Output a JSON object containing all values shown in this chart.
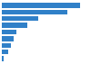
{
  "values": [
    5800,
    4900,
    2700,
    1900,
    1100,
    850,
    650,
    500,
    160
  ],
  "bar_color": "#3080c8",
  "background_color": "#ffffff",
  "grid_color": "#d0d0d0",
  "xlim_max": 6500,
  "figsize": [
    1.0,
    0.71
  ],
  "dpi": 100,
  "bar_height": 0.72
}
